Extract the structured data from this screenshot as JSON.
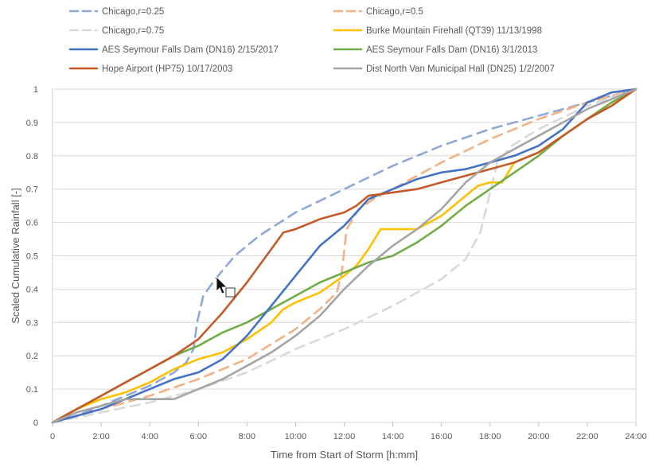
{
  "chart_data": {
    "type": "line",
    "title": "",
    "xlabel": "Time from Start of Storm [h:mm]",
    "ylabel": "Scaled Cumulative Rainfall [-]",
    "xlim": [
      0,
      24
    ],
    "ylim": [
      0,
      1
    ],
    "x_ticks": [
      {
        "value": 0,
        "label": "0"
      },
      {
        "value": 2,
        "label": "2:00"
      },
      {
        "value": 4,
        "label": "4:00"
      },
      {
        "value": 6,
        "label": "6:00"
      },
      {
        "value": 8,
        "label": "8:00"
      },
      {
        "value": 10,
        "label": "10:00"
      },
      {
        "value": 12,
        "label": "12:00"
      },
      {
        "value": 14,
        "label": "14:00"
      },
      {
        "value": 16,
        "label": "16:00"
      },
      {
        "value": 18,
        "label": "18:00"
      },
      {
        "value": 20,
        "label": "20:00"
      },
      {
        "value": 22,
        "label": "22:00"
      },
      {
        "value": 24,
        "label": "24:00"
      }
    ],
    "y_ticks": [
      {
        "value": 0,
        "label": "0"
      },
      {
        "value": 0.1,
        "label": "0.1"
      },
      {
        "value": 0.2,
        "label": "0.2"
      },
      {
        "value": 0.3,
        "label": "0.3"
      },
      {
        "value": 0.4,
        "label": "0.4"
      },
      {
        "value": 0.5,
        "label": "0.5"
      },
      {
        "value": 0.6,
        "label": "0.6"
      },
      {
        "value": 0.7,
        "label": "0.7"
      },
      {
        "value": 0.8,
        "label": "0.8"
      },
      {
        "value": 0.9,
        "label": "0.9"
      },
      {
        "value": 1,
        "label": "1"
      }
    ],
    "grid": "horizontal",
    "legend_position": "top",
    "series": [
      {
        "name": "Chicago,r=0.25",
        "color": "#8fa8d8",
        "dash": true,
        "points": [
          [
            0,
            0
          ],
          [
            1,
            0.02
          ],
          [
            2,
            0.05
          ],
          [
            3,
            0.08
          ],
          [
            4,
            0.11
          ],
          [
            5,
            0.15
          ],
          [
            5.5,
            0.18
          ],
          [
            5.8,
            0.22
          ],
          [
            5.95,
            0.3
          ],
          [
            6.2,
            0.38
          ],
          [
            6.7,
            0.43
          ],
          [
            7.5,
            0.5
          ],
          [
            8.5,
            0.56
          ],
          [
            10,
            0.63
          ],
          [
            12,
            0.7
          ],
          [
            14,
            0.77
          ],
          [
            16,
            0.83
          ],
          [
            18,
            0.88
          ],
          [
            20,
            0.92
          ],
          [
            22,
            0.96
          ],
          [
            24,
            1
          ]
        ]
      },
      {
        "name": "Chicago,r=0.5",
        "color": "#f4b183",
        "dash": true,
        "points": [
          [
            0,
            0
          ],
          [
            2,
            0.04
          ],
          [
            4,
            0.08
          ],
          [
            6,
            0.13
          ],
          [
            8,
            0.19
          ],
          [
            10,
            0.28
          ],
          [
            11,
            0.34
          ],
          [
            11.7,
            0.39
          ],
          [
            11.9,
            0.45
          ],
          [
            12.1,
            0.58
          ],
          [
            12.6,
            0.64
          ],
          [
            13.2,
            0.67
          ],
          [
            14,
            0.7
          ],
          [
            16,
            0.78
          ],
          [
            18,
            0.85
          ],
          [
            20,
            0.91
          ],
          [
            22,
            0.96
          ],
          [
            24,
            1
          ]
        ]
      },
      {
        "name": "Chicago,r=0.75",
        "color": "#d9d9d9",
        "dash": true,
        "points": [
          [
            0,
            0
          ],
          [
            2,
            0.03
          ],
          [
            4,
            0.06
          ],
          [
            6,
            0.1
          ],
          [
            8,
            0.15
          ],
          [
            10,
            0.22
          ],
          [
            12,
            0.28
          ],
          [
            14,
            0.35
          ],
          [
            16,
            0.43
          ],
          [
            17,
            0.49
          ],
          [
            17.6,
            0.57
          ],
          [
            17.9,
            0.66
          ],
          [
            18.3,
            0.78
          ],
          [
            18.9,
            0.83
          ],
          [
            20,
            0.88
          ],
          [
            22,
            0.95
          ],
          [
            24,
            1
          ]
        ]
      },
      {
        "name": "Burke Mountain Firehall (QT39) 11/13/1998",
        "color": "#ffc000",
        "dash": false,
        "points": [
          [
            0,
            0
          ],
          [
            1,
            0.04
          ],
          [
            2,
            0.07
          ],
          [
            3,
            0.09
          ],
          [
            4,
            0.12
          ],
          [
            5,
            0.16
          ],
          [
            6,
            0.19
          ],
          [
            7,
            0.21
          ],
          [
            8,
            0.25
          ],
          [
            9,
            0.3
          ],
          [
            9.5,
            0.34
          ],
          [
            10,
            0.36
          ],
          [
            11,
            0.39
          ],
          [
            12,
            0.44
          ],
          [
            12.5,
            0.47
          ],
          [
            13,
            0.52
          ],
          [
            13.5,
            0.58
          ],
          [
            14,
            0.58
          ],
          [
            15,
            0.58
          ],
          [
            16,
            0.62
          ],
          [
            17,
            0.68
          ],
          [
            17.5,
            0.71
          ],
          [
            18,
            0.72
          ],
          [
            18.5,
            0.72
          ],
          [
            19,
            0.78
          ],
          [
            20,
            0.81
          ],
          [
            21,
            0.86
          ],
          [
            22,
            0.91
          ],
          [
            23,
            0.96
          ],
          [
            24,
            1
          ]
        ]
      },
      {
        "name": "AES Seymour Falls Dam (DN16) 3/1/2013",
        "color": "#70ad47",
        "dash": false,
        "points": [
          [
            0,
            0
          ],
          [
            1,
            0.04
          ],
          [
            2,
            0.08
          ],
          [
            3,
            0.12
          ],
          [
            4,
            0.16
          ],
          [
            5,
            0.2
          ],
          [
            6,
            0.23
          ],
          [
            7,
            0.27
          ],
          [
            8,
            0.3
          ],
          [
            9,
            0.34
          ],
          [
            10,
            0.38
          ],
          [
            11,
            0.42
          ],
          [
            12,
            0.45
          ],
          [
            13,
            0.48
          ],
          [
            14,
            0.5
          ],
          [
            15,
            0.54
          ],
          [
            16,
            0.59
          ],
          [
            17,
            0.65
          ],
          [
            18,
            0.7
          ],
          [
            19,
            0.75
          ],
          [
            20,
            0.8
          ],
          [
            21,
            0.86
          ],
          [
            22,
            0.91
          ],
          [
            23,
            0.96
          ],
          [
            24,
            1
          ]
        ]
      },
      {
        "name": "AES Seymour Falls Dam (DN16) 2/15/2017",
        "color": "#4472c4",
        "dash": false,
        "points": [
          [
            0,
            0
          ],
          [
            1,
            0.02
          ],
          [
            2,
            0.04
          ],
          [
            3,
            0.07
          ],
          [
            4,
            0.1
          ],
          [
            5,
            0.13
          ],
          [
            6,
            0.15
          ],
          [
            7,
            0.19
          ],
          [
            8,
            0.26
          ],
          [
            9,
            0.35
          ],
          [
            10,
            0.44
          ],
          [
            11,
            0.53
          ],
          [
            12,
            0.59
          ],
          [
            12.5,
            0.63
          ],
          [
            13,
            0.67
          ],
          [
            14,
            0.7
          ],
          [
            15,
            0.73
          ],
          [
            16,
            0.75
          ],
          [
            17,
            0.76
          ],
          [
            18,
            0.78
          ],
          [
            19,
            0.8
          ],
          [
            20,
            0.83
          ],
          [
            21,
            0.88
          ],
          [
            22,
            0.96
          ],
          [
            23,
            0.99
          ],
          [
            24,
            1
          ]
        ]
      },
      {
        "name": "Hope Airport (HP75) 10/17/2003",
        "color": "#c55a28",
        "dash": false,
        "points": [
          [
            0,
            0
          ],
          [
            1,
            0.04
          ],
          [
            2,
            0.08
          ],
          [
            3,
            0.12
          ],
          [
            4,
            0.16
          ],
          [
            5,
            0.2
          ],
          [
            6,
            0.25
          ],
          [
            7,
            0.33
          ],
          [
            8,
            0.42
          ],
          [
            9,
            0.52
          ],
          [
            9.5,
            0.57
          ],
          [
            10,
            0.58
          ],
          [
            11,
            0.61
          ],
          [
            12,
            0.63
          ],
          [
            12.5,
            0.65
          ],
          [
            13,
            0.68
          ],
          [
            14,
            0.69
          ],
          [
            15,
            0.7
          ],
          [
            16,
            0.72
          ],
          [
            17,
            0.74
          ],
          [
            18,
            0.76
          ],
          [
            19,
            0.78
          ],
          [
            20,
            0.81
          ],
          [
            21,
            0.86
          ],
          [
            22,
            0.91
          ],
          [
            23,
            0.95
          ],
          [
            24,
            1
          ]
        ]
      },
      {
        "name": "Dist North Van Municipal Hall (DN25) 1/2/2007",
        "color": "#a5a5a5",
        "dash": false,
        "points": [
          [
            0,
            0
          ],
          [
            1,
            0.03
          ],
          [
            2,
            0.05
          ],
          [
            3,
            0.07
          ],
          [
            4,
            0.07
          ],
          [
            5,
            0.07
          ],
          [
            6,
            0.1
          ],
          [
            7,
            0.13
          ],
          [
            8,
            0.17
          ],
          [
            9,
            0.21
          ],
          [
            10,
            0.26
          ],
          [
            11,
            0.32
          ],
          [
            12,
            0.4
          ],
          [
            13,
            0.47
          ],
          [
            14,
            0.53
          ],
          [
            15,
            0.58
          ],
          [
            16,
            0.64
          ],
          [
            17,
            0.72
          ],
          [
            18,
            0.78
          ],
          [
            19,
            0.82
          ],
          [
            20,
            0.86
          ],
          [
            21,
            0.9
          ],
          [
            22,
            0.94
          ],
          [
            23,
            0.97
          ],
          [
            24,
            1
          ]
        ]
      }
    ]
  }
}
